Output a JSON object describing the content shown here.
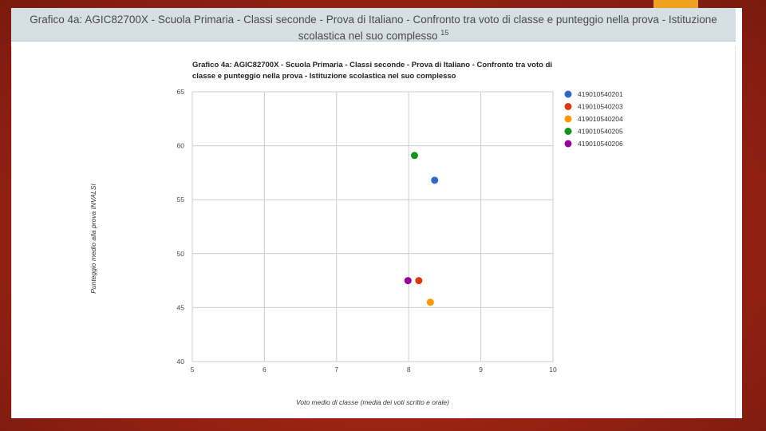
{
  "banner": {
    "title": "Grafico 4a: AGIC82700X - Scuola Primaria - Classi seconde - Prova di Italiano - Confronto tra voto di classe e punteggio nella prova - Istituzione scolastica nel suo complesso",
    "footnote": "15"
  },
  "chart_data": {
    "type": "scatter",
    "title_lines": [
      "Grafico 4a: AGIC82700X - Scuola Primaria - Classi seconde - Prova di Italiano - Confronto tra voto di",
      "classe e punteggio nella prova - Istituzione scolastica nel suo complesso"
    ],
    "xlabel": "Voto medio di classe (media dei voti scritto e orale)",
    "ylabel": "Punteggio medio alla prova INVALSI",
    "xlim": [
      5,
      10
    ],
    "ylim": [
      40,
      65
    ],
    "x_ticks": [
      5,
      6,
      7,
      8,
      9,
      10
    ],
    "y_ticks": [
      40,
      45,
      50,
      55,
      60,
      65
    ],
    "grid": true,
    "legend_position": "right",
    "series": [
      {
        "name": "419010540201",
        "color": "#3366cc",
        "points": [
          {
            "x": 8.36,
            "y": 56.8
          }
        ]
      },
      {
        "name": "419010540203",
        "color": "#dc3912",
        "points": [
          {
            "x": 8.14,
            "y": 47.5
          }
        ]
      },
      {
        "name": "419010540204",
        "color": "#ff9900",
        "points": [
          {
            "x": 8.3,
            "y": 45.5
          }
        ]
      },
      {
        "name": "419010540205",
        "color": "#109618",
        "points": [
          {
            "x": 8.08,
            "y": 59.1
          }
        ]
      },
      {
        "name": "419010540206",
        "color": "#990099",
        "points": [
          {
            "x": 7.99,
            "y": 47.5
          }
        ]
      }
    ]
  }
}
